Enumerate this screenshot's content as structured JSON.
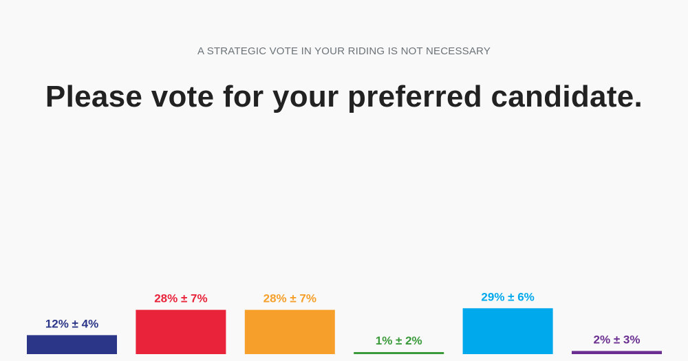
{
  "header": {
    "kicker": "A STRATEGIC VOTE IN YOUR RIDING IS NOT NECESSARY",
    "headline": "Please vote for your preferred candidate."
  },
  "chart_data": {
    "type": "bar",
    "title": "",
    "xlabel": "",
    "ylabel": "",
    "grid": false,
    "bars": [
      {
        "value": 12,
        "label": "12% ± 4%",
        "color": "#2c3688"
      },
      {
        "value": 28,
        "label": "28% ± 7%",
        "color": "#e8233a"
      },
      {
        "value": 28,
        "label": "28% ± 7%",
        "color": "#f6a02b"
      },
      {
        "value": 1,
        "label": "1% ± 2%",
        "color": "#3a9a3a"
      },
      {
        "value": 29,
        "label": "29% ± 6%",
        "color": "#00a8ec"
      },
      {
        "value": 2,
        "label": "2% ± 3%",
        "color": "#6a2f91"
      }
    ]
  }
}
